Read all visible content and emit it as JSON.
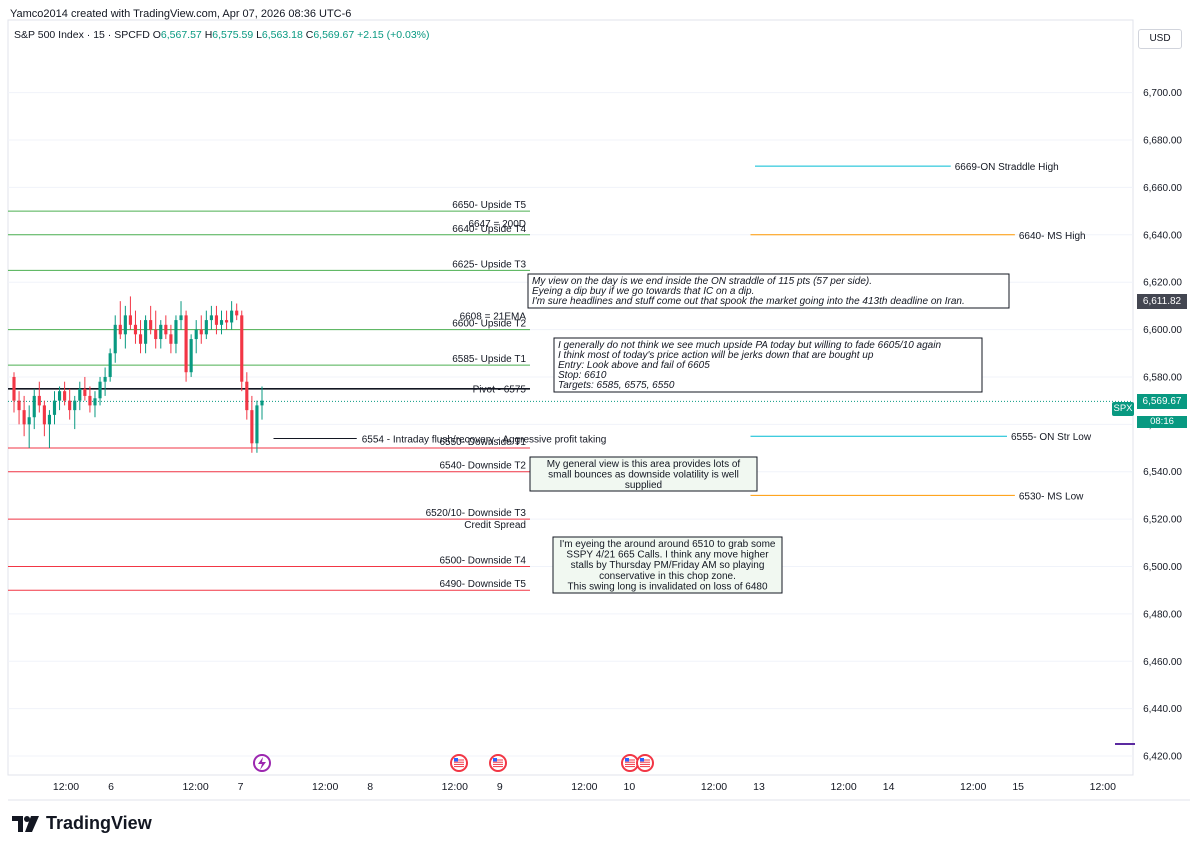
{
  "header": {
    "credit": "Yamco2014 created with TradingView.com, Apr 07, 2026 08:36 UTC-6",
    "symbol": "S&P 500 Index · 15 · SPCFD",
    "o_label": "O",
    "o": "6,567.57",
    "h_label": "H",
    "h": "6,575.59",
    "l_label": "L",
    "l": "6,563.18",
    "c_label": "C",
    "c": "6,569.67",
    "change": "+2.15 (+0.03%)",
    "currency": "USD"
  },
  "tags": {
    "spx": "SPX",
    "last_price": "6,569.67",
    "countdown": "08:16",
    "marker_price": "6,611.82"
  },
  "footer": {
    "brand": "TradingView"
  },
  "colors": {
    "green": "#4caf50",
    "red": "#f23645",
    "cyan": "#00bcd4",
    "orange": "#ff9800",
    "up": "#089981",
    "down": "#f23645",
    "axis": "#131722",
    "grid": "#f0f3fa"
  },
  "chart_data": {
    "type": "candlestick",
    "y_axis": {
      "min": 6412,
      "max": 6718,
      "ticks": [
        6420,
        6440,
        6460,
        6480,
        6500,
        6520,
        6540,
        6560,
        6580,
        6600,
        6620,
        6640,
        6660,
        6680,
        6700
      ],
      "tick_labels": [
        "6,420.00",
        "6,440.00",
        "6,460.00",
        "6,480.00",
        "6,500.00",
        "6,520.00",
        "6,540.00",
        "6,560.00",
        "6,580.00",
        "6,600.00",
        "6,620.00",
        "6,640.00",
        "6,660.00",
        "6,680.00",
        "6,700.00"
      ]
    },
    "x_axis": {
      "tick_labels": [
        "12:00",
        "6",
        "12:00",
        "7",
        "12:00",
        "8",
        "12:00",
        "9",
        "12:00",
        "10",
        "12:00",
        "13",
        "12:00",
        "14",
        "12:00",
        "15",
        "12:00"
      ],
      "tick_pos": [
        0.0,
        0.04,
        0.1152,
        0.1552,
        0.2304,
        0.2704,
        0.3456,
        0.3856,
        0.4608,
        0.5008,
        0.576,
        0.616,
        0.6912,
        0.7312,
        0.8064,
        0.8464,
        0.9216
      ]
    },
    "last_close": 6569.67,
    "candles": [
      [
        6580,
        6582,
        6565,
        6570
      ],
      [
        6570,
        6574,
        6560,
        6566
      ],
      [
        6566,
        6572,
        6555,
        6560
      ],
      [
        6560,
        6568,
        6550,
        6563
      ],
      [
        6563,
        6575,
        6558,
        6572
      ],
      [
        6572,
        6578,
        6565,
        6568
      ],
      [
        6568,
        6570,
        6555,
        6560
      ],
      [
        6560,
        6566,
        6550,
        6564
      ],
      [
        6564,
        6574,
        6560,
        6570
      ],
      [
        6570,
        6576,
        6566,
        6574
      ],
      [
        6574,
        6578,
        6568,
        6570
      ],
      [
        6570,
        6575,
        6562,
        6566
      ],
      [
        6566,
        6572,
        6558,
        6570
      ],
      [
        6570,
        6578,
        6566,
        6575
      ],
      [
        6575,
        6580,
        6570,
        6572
      ],
      [
        6572,
        6576,
        6565,
        6568
      ],
      [
        6568,
        6574,
        6563,
        6571
      ],
      [
        6571,
        6580,
        6568,
        6578
      ],
      [
        6578,
        6584,
        6572,
        6580
      ],
      [
        6580,
        6592,
        6578,
        6590
      ],
      [
        6590,
        6606,
        6586,
        6602
      ],
      [
        6602,
        6612,
        6596,
        6598
      ],
      [
        6598,
        6610,
        6592,
        6606
      ],
      [
        6606,
        6614,
        6600,
        6602
      ],
      [
        6602,
        6608,
        6594,
        6598
      ],
      [
        6598,
        6604,
        6590,
        6594
      ],
      [
        6594,
        6606,
        6590,
        6604
      ],
      [
        6604,
        6610,
        6598,
        6600
      ],
      [
        6600,
        6608,
        6592,
        6596
      ],
      [
        6596,
        6604,
        6592,
        6602
      ],
      [
        6602,
        6606,
        6596,
        6598
      ],
      [
        6598,
        6602,
        6590,
        6594
      ],
      [
        6594,
        6606,
        6590,
        6604
      ],
      [
        6604,
        6612,
        6600,
        6606
      ],
      [
        6606,
        6608,
        6578,
        6582
      ],
      [
        6582,
        6598,
        6580,
        6596
      ],
      [
        6596,
        6604,
        6590,
        6600
      ],
      [
        6600,
        6606,
        6594,
        6598
      ],
      [
        6598,
        6608,
        6596,
        6604
      ],
      [
        6604,
        6610,
        6600,
        6606
      ],
      [
        6606,
        6610,
        6598,
        6602
      ],
      [
        6602,
        6608,
        6598,
        6604
      ],
      [
        6604,
        6608,
        6600,
        6603
      ],
      [
        6603,
        6612,
        6600,
        6608
      ],
      [
        6608,
        6611,
        6604,
        6606
      ],
      [
        6606,
        6608,
        6574,
        6578
      ],
      [
        6578,
        6582,
        6562,
        6566
      ],
      [
        6566,
        6572,
        6548,
        6552
      ],
      [
        6552,
        6570,
        6548,
        6568
      ],
      [
        6568,
        6576,
        6562,
        6570
      ]
    ],
    "levels": [
      {
        "label": "6650- Upside T5",
        "value": 6650,
        "color": "green",
        "x0": 0.0,
        "x1": 0.464
      },
      {
        "label": "6647 = 200D",
        "value": 6647,
        "color": "",
        "x0": 0.0,
        "x1": 0.0,
        "label_only": true
      },
      {
        "label": "6640- Upside T4",
        "value": 6640,
        "color": "green",
        "x0": 0.0,
        "x1": 0.464
      },
      {
        "label": "6625- Upside T3",
        "value": 6625,
        "color": "green",
        "x0": 0.0,
        "x1": 0.464
      },
      {
        "label": "6600- Upside T2",
        "value": 6600,
        "color": "green",
        "x0": 0.0,
        "x1": 0.464
      },
      {
        "label": "6608 = 21EMA",
        "value": 6608,
        "color": "",
        "x0": 0.0,
        "x1": 0.0,
        "label_only": true
      },
      {
        "label": "6585- Upside T1",
        "value": 6585,
        "color": "green",
        "x0": 0.0,
        "x1": 0.464
      },
      {
        "label": "Pivot - 6575",
        "value": 6575,
        "color": "black",
        "x0": 0.0,
        "x1": 0.464
      },
      {
        "label": "6554 - Intraday flush/recovery - Aggressive profit taking",
        "value": 6554,
        "color": "dark",
        "x0": 0.236,
        "x1": 0.31
      },
      {
        "label": "6550- Downside T1",
        "value": 6550,
        "color": "red",
        "x0": 0.0,
        "x1": 0.464
      },
      {
        "label": "6540- Downside T2",
        "value": 6540,
        "color": "red",
        "x0": 0.0,
        "x1": 0.464
      },
      {
        "label": "6520/10- Downside T3",
        "value": 6520,
        "color": "red",
        "x0": 0.0,
        "x1": 0.464
      },
      {
        "label": "Credit Spread",
        "value": 6520,
        "color": "",
        "label_only": true
      },
      {
        "label": "6500- Downside T4",
        "value": 6500,
        "color": "red",
        "x0": 0.0,
        "x1": 0.464
      },
      {
        "label": "6490- Downside T5",
        "value": 6490,
        "color": "red",
        "x0": 0.0,
        "x1": 0.464
      },
      {
        "label": "6669-ON Straddle High",
        "value": 6669,
        "color": "cyan",
        "x0": 0.664,
        "x1": 0.838
      },
      {
        "label": "6640- MS High",
        "value": 6640,
        "color": "orange",
        "x0": 0.66,
        "x1": 0.895
      },
      {
        "label": "6555- ON Str Low",
        "value": 6555,
        "color": "cyan",
        "x0": 0.66,
        "x1": 0.888
      },
      {
        "label": "6530- MS Low",
        "value": 6530,
        "color": "orange",
        "x0": 0.66,
        "x1": 0.895
      }
    ],
    "notes": [
      {
        "lines": [
          "My view on the day is we end inside the ON straddle of 115 pts (57 per side).",
          "Eyeing a dip buy if we go towards that IC on a dip.",
          "I'm sure headlines and stuff come out that spook the market going into the 413th deadline on Iran."
        ],
        "style": "italic"
      },
      {
        "lines": [
          "I generally do not think we see much upside PA today but willing to fade 6605/10 again",
          "I think most of today's price action will be jerks down that are bought up",
          "Entry: Look above and fail of 6605",
          "Stop: 6610",
          "Targets: 6585, 6575, 6550"
        ],
        "style": "italic"
      },
      {
        "lines": [
          "My general view is this area provides lots of",
          "small bounces as downside volatility is well",
          "supplied"
        ],
        "style": "normal"
      },
      {
        "lines": [
          "I'm eyeing the around around 6510 to grab some",
          "SSPY 4/21 665 Calls. I think any move higher",
          "stalls by Thursday PM/Friday AM so playing",
          "conservative in this chop zone.",
          "This swing long is invalidated on loss of 6480"
        ],
        "style": "normal"
      }
    ]
  }
}
